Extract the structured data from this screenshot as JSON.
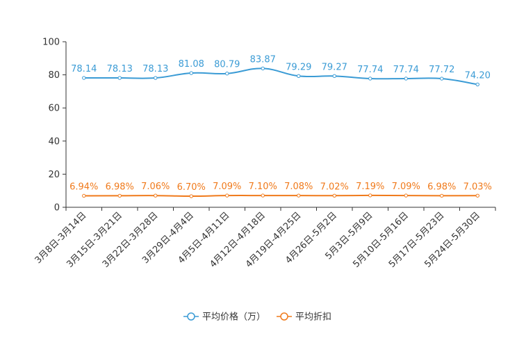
{
  "chart_data": {
    "type": "line",
    "title": "",
    "xlabel": "",
    "ylabel": "",
    "ylim": [
      0,
      100
    ],
    "yticks": [
      0,
      20,
      40,
      60,
      80,
      100
    ],
    "grid": false,
    "legend_position": "bottom-center",
    "categories": [
      "3月8日-3月14日",
      "3月15日-3月21日",
      "3月22日-3月28日",
      "3月29日-4月4日",
      "4月5日-4月11日",
      "4月12日-4月18日",
      "4月19日-4月25日",
      "4月26日-5月2日",
      "5月3日-5月9日",
      "5月10日-5月16日",
      "5月17日-5月23日",
      "5月24日-5月30日"
    ],
    "series": [
      {
        "name": "平均价格（万）",
        "color": "#3a9bd5",
        "values": [
          78.14,
          78.13,
          78.13,
          81.08,
          80.79,
          83.87,
          79.29,
          79.27,
          77.74,
          77.74,
          77.72,
          74.2
        ],
        "labels": [
          "78.14",
          "78.13",
          "78.13",
          "81.08",
          "80.79",
          "83.87",
          "79.29",
          "79.27",
          "77.74",
          "77.74",
          "77.72",
          "74.20"
        ]
      },
      {
        "name": "平均折扣",
        "color": "#f07a1b",
        "values": [
          6.94,
          6.98,
          7.06,
          6.7,
          7.09,
          7.1,
          7.08,
          7.02,
          7.19,
          7.09,
          6.98,
          7.03
        ],
        "labels": [
          "6.94%",
          "6.98%",
          "7.06%",
          "6.70%",
          "7.09%",
          "7.10%",
          "7.08%",
          "7.02%",
          "7.19%",
          "7.09%",
          "6.98%",
          "7.03%"
        ]
      }
    ]
  }
}
